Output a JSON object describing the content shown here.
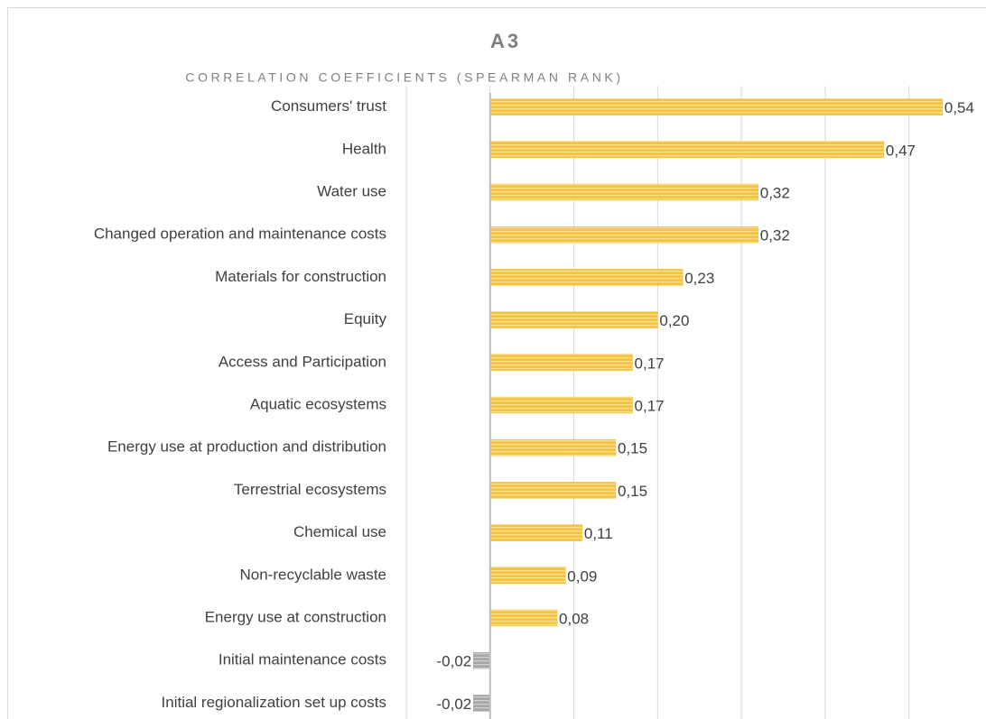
{
  "chart_data": {
    "type": "hbar",
    "title": "A3",
    "subtitle": "CORRELATION COEFFICIENTS (SPEARMAN RANK)",
    "categories": [
      "Consumers' trust",
      "Health",
      "Water use",
      "Changed operation and maintenance costs",
      "Materials for construction",
      "Equity",
      "Access and Participation",
      "Aquatic ecosystems",
      "Energy use at production and distribution",
      "Terrestrial ecosystems",
      "Chemical use",
      "Non-recyclable waste",
      "Energy use at construction",
      "Initial maintenance costs",
      "Initial regionalization set up costs"
    ],
    "values": [
      0.54,
      0.47,
      0.32,
      0.32,
      0.23,
      0.2,
      0.17,
      0.17,
      0.15,
      0.15,
      0.11,
      0.09,
      0.08,
      -0.02,
      -0.02
    ],
    "value_labels": [
      "0,54",
      "0,47",
      "0,32",
      "0,32",
      "0,23",
      "0,20",
      "0,17",
      "0,17",
      "0,15",
      "0,15",
      "0,11",
      "0,09",
      "0,08",
      "-0,02",
      "-0,02"
    ],
    "color": "#f5c242",
    "negative_color": "#a6a6a6",
    "xlim": [
      -0.1,
      0.58
    ],
    "xticks": [
      -0.1,
      0,
      0.1,
      0.2,
      0.3,
      0.4,
      0.5
    ],
    "grid": true
  }
}
